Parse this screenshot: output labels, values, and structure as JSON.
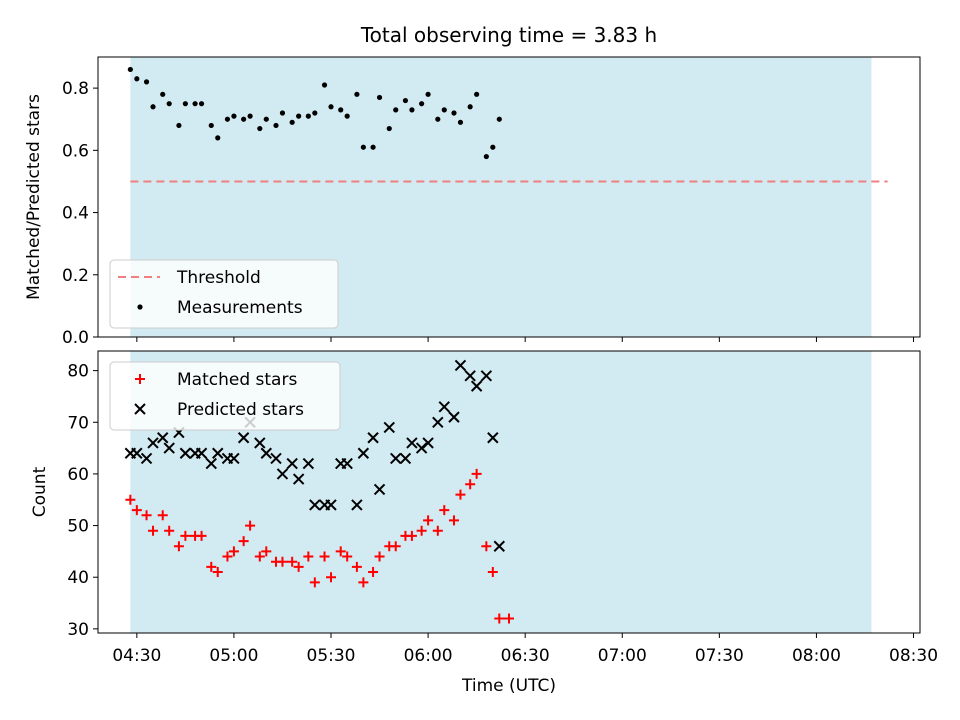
{
  "chart_data": [
    {
      "type": "scatter",
      "title": "Total observing time = 3.83 h",
      "xlabel": "",
      "ylabel": "Matched/Predicted stars",
      "xlim": [
        "04:18",
        "08:32"
      ],
      "ylim": [
        0,
        0.9
      ],
      "yticks": [
        "0.0",
        "0.2",
        "0.4",
        "0.6",
        "0.8"
      ],
      "shaded_span": [
        "04:28",
        "08:17"
      ],
      "shade_color": "#add8e6",
      "legend_position": "lower-left",
      "series": [
        {
          "name": "Threshold",
          "kind": "line",
          "style": "dashed",
          "color": "#f08080",
          "x": [
            "04:28",
            "08:22"
          ],
          "y": [
            0.5,
            0.5
          ]
        },
        {
          "name": "Measurements",
          "kind": "scatter",
          "marker": "dot",
          "color": "#000000",
          "x": [
            "04:28",
            "04:30",
            "04:33",
            "04:35",
            "04:38",
            "04:40",
            "04:43",
            "04:45",
            "04:48",
            "04:50",
            "04:53",
            "04:55",
            "04:58",
            "05:00",
            "05:03",
            "05:05",
            "05:08",
            "05:10",
            "05:13",
            "05:15",
            "05:18",
            "05:20",
            "05:23",
            "05:25",
            "05:28",
            "05:30",
            "05:33",
            "05:35",
            "05:38",
            "05:40",
            "05:43",
            "05:45",
            "05:48",
            "05:50",
            "05:53",
            "05:55",
            "05:58",
            "06:00",
            "06:03",
            "06:05",
            "06:08",
            "06:10",
            "06:13",
            "06:15",
            "06:18",
            "06:20",
            "06:22"
          ],
          "y": [
            0.86,
            0.83,
            0.82,
            0.74,
            0.78,
            0.75,
            0.68,
            0.75,
            0.75,
            0.75,
            0.68,
            0.64,
            0.7,
            0.71,
            0.7,
            0.71,
            0.67,
            0.7,
            0.68,
            0.72,
            0.69,
            0.71,
            0.71,
            0.72,
            0.81,
            0.74,
            0.73,
            0.71,
            0.78,
            0.61,
            0.61,
            0.77,
            0.67,
            0.73,
            0.76,
            0.73,
            0.75,
            0.78,
            0.7,
            0.73,
            0.72,
            0.69,
            0.74,
            0.78,
            0.58,
            0.61,
            0.7
          ]
        }
      ]
    },
    {
      "type": "scatter",
      "title": "",
      "xlabel": "Time (UTC)",
      "ylabel": "Count",
      "xticks": [
        "04:30",
        "05:00",
        "05:30",
        "06:00",
        "06:30",
        "07:00",
        "07:30",
        "08:00",
        "08:30"
      ],
      "yticks": [
        "30",
        "40",
        "50",
        "60",
        "70",
        "80"
      ],
      "ylim": [
        29.2,
        83.8
      ],
      "shaded_span": [
        "04:28",
        "08:17"
      ],
      "shade_color": "#add8e6",
      "legend_position": "upper-left",
      "series": [
        {
          "name": "Matched stars",
          "kind": "scatter",
          "marker": "plus",
          "color": "#ff0000",
          "x": [
            "04:28",
            "04:30",
            "04:33",
            "04:35",
            "04:38",
            "04:40",
            "04:43",
            "04:45",
            "04:48",
            "04:50",
            "04:53",
            "04:55",
            "04:58",
            "05:00",
            "05:03",
            "05:05",
            "05:08",
            "05:10",
            "05:13",
            "05:15",
            "05:18",
            "05:20",
            "05:23",
            "05:25",
            "05:28",
            "05:30",
            "05:33",
            "05:35",
            "05:38",
            "05:40",
            "05:43",
            "05:45",
            "05:48",
            "05:50",
            "05:53",
            "05:55",
            "05:58",
            "06:00",
            "06:03",
            "06:05",
            "06:08",
            "06:10",
            "06:13",
            "06:15",
            "06:18",
            "06:20",
            "06:22",
            "06:25"
          ],
          "y": [
            55,
            53,
            52,
            49,
            52,
            49,
            46,
            48,
            48,
            48,
            42,
            41,
            44,
            45,
            47,
            50,
            44,
            45,
            43,
            43,
            43,
            42,
            44,
            39,
            44,
            40,
            45,
            44,
            42,
            39,
            41,
            44,
            46,
            46,
            48,
            48,
            49,
            51,
            49,
            53,
            51,
            56,
            58,
            60,
            46,
            41,
            32,
            32
          ]
        },
        {
          "name": "Predicted stars",
          "kind": "scatter",
          "marker": "x",
          "color": "#000000",
          "x": [
            "04:28",
            "04:30",
            "04:33",
            "04:35",
            "04:38",
            "04:40",
            "04:43",
            "04:45",
            "04:48",
            "04:50",
            "04:53",
            "04:55",
            "04:58",
            "05:00",
            "05:03",
            "05:05",
            "05:08",
            "05:10",
            "05:13",
            "05:15",
            "05:18",
            "05:20",
            "05:23",
            "05:25",
            "05:28",
            "05:30",
            "05:33",
            "05:35",
            "05:38",
            "05:40",
            "05:43",
            "05:45",
            "05:48",
            "05:50",
            "05:53",
            "05:55",
            "05:58",
            "06:00",
            "06:03",
            "06:05",
            "06:08",
            "06:10",
            "06:13",
            "06:15",
            "06:18",
            "06:20",
            "06:22"
          ],
          "y": [
            64,
            64,
            63,
            66,
            67,
            65,
            68,
            64,
            64,
            64,
            62,
            64,
            63,
            63,
            67,
            70,
            66,
            64,
            63,
            60,
            62,
            59,
            62,
            54,
            54,
            54,
            62,
            62,
            54,
            64,
            67,
            57,
            69,
            63,
            63,
            66,
            65,
            66,
            70,
            73,
            71,
            81,
            79,
            77,
            79,
            67,
            46
          ]
        }
      ]
    }
  ]
}
